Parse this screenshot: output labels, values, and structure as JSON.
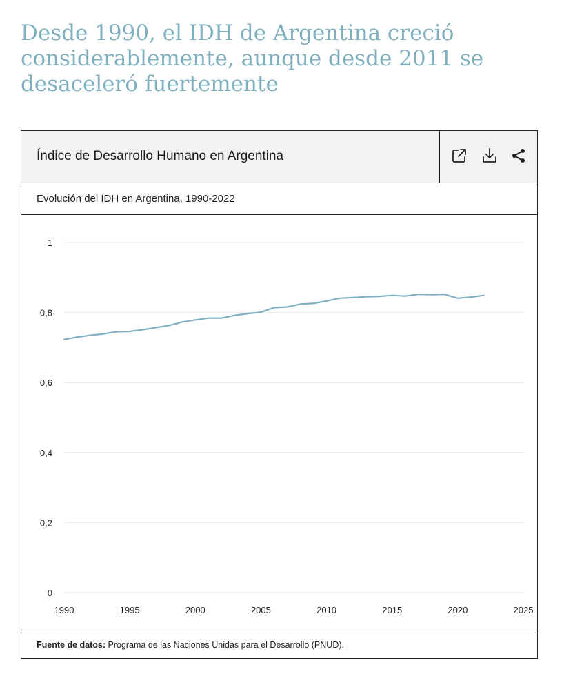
{
  "headline": "Desde 1990, el IDH de Argentina creció considerablemente, aunque desde 2011 se desaceleró fuertemente",
  "card": {
    "title": "Índice de Desarrollo Humano en Argentina",
    "subtitle": "Evolución del IDH en Argentina, 1990-2022"
  },
  "tools": {
    "open_icon": "external-link-icon",
    "download_icon": "download-icon",
    "share_icon": "share-icon"
  },
  "footer": {
    "label": "Fuente de datos:",
    "text": " Programa de las Naciones Unidas para el Desarrollo (PNUD)."
  },
  "colors": {
    "line": "#7fb0c2",
    "headline": "#7fb0bf",
    "grid": "#e6e6e6"
  },
  "chart_data": {
    "type": "line",
    "xlim": [
      1990,
      2025
    ],
    "ylim": [
      0,
      1
    ],
    "x_ticks": [
      1990,
      1995,
      2000,
      2005,
      2010,
      2015,
      2020,
      2025
    ],
    "y_ticks": [
      0,
      0.2,
      0.4,
      0.6,
      0.8,
      1
    ],
    "y_tick_labels": [
      "0",
      "0,2",
      "0,4",
      "0,6",
      "0,8",
      "1"
    ],
    "grid": true,
    "series": [
      {
        "x": [
          1990,
          1991,
          1992,
          1993,
          1994,
          1995,
          1996,
          1997,
          1998,
          1999,
          2000,
          2001,
          2002,
          2003,
          2004,
          2005,
          2006,
          2007,
          2008,
          2009,
          2010,
          2011,
          2012,
          2013,
          2014,
          2015,
          2016,
          2017,
          2018,
          2019,
          2020,
          2021,
          2022
        ],
        "values": [
          0.723,
          0.73,
          0.735,
          0.739,
          0.745,
          0.746,
          0.751,
          0.757,
          0.763,
          0.773,
          0.779,
          0.784,
          0.784,
          0.792,
          0.797,
          0.801,
          0.814,
          0.816,
          0.824,
          0.826,
          0.833,
          0.841,
          0.843,
          0.845,
          0.846,
          0.849,
          0.847,
          0.852,
          0.851,
          0.852,
          0.841,
          0.844,
          0.849
        ]
      }
    ]
  }
}
